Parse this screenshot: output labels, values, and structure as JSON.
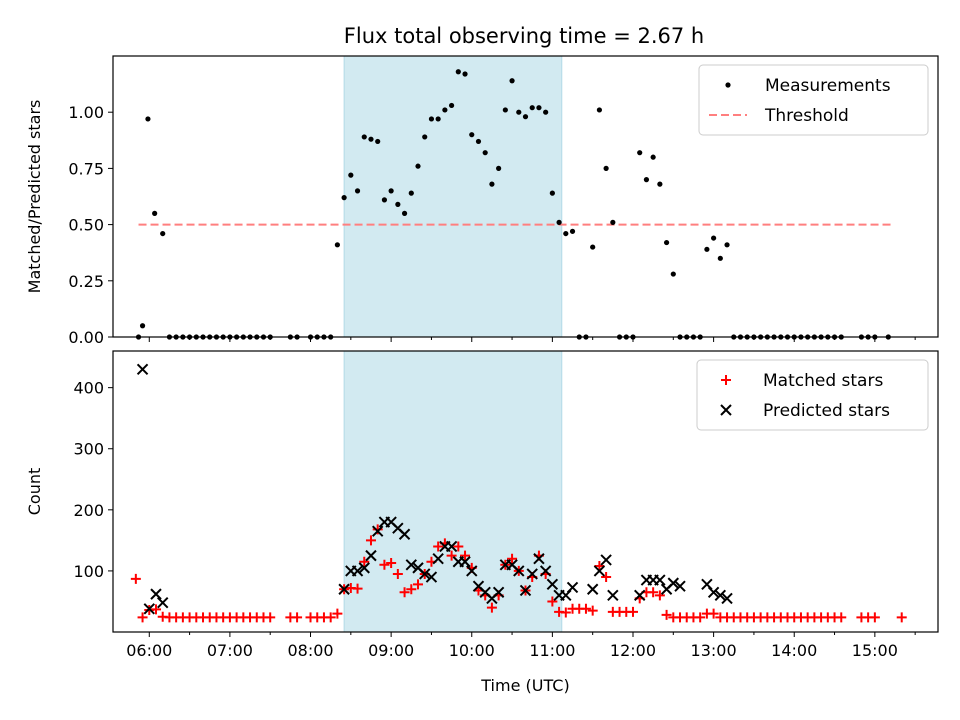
{
  "title": "Flux total observing time = 2.67 h",
  "colors": {
    "measurement": "#000000",
    "threshold": "#ff7f7f",
    "matched": "#ff0000",
    "predicted": "#000000",
    "span": "#add8e6"
  },
  "chart_data": [
    {
      "type": "scatter",
      "panel": "top",
      "ylabel": "Matched/Predicted stars",
      "xlim": [
        "05:33",
        "15:47"
      ],
      "ylim": [
        0,
        1.25
      ],
      "yticks": [
        "0.00",
        "0.25",
        "0.50",
        "0.75",
        "1.00"
      ],
      "legend_position": "upper right",
      "highlight_span": [
        "08:25",
        "11:07"
      ],
      "threshold": {
        "name": "Threshold",
        "value": 0.5,
        "x_range": [
          "05:52",
          "15:12"
        ],
        "style": "dashed"
      },
      "series": [
        {
          "name": "Measurements",
          "marker": "dot",
          "x": [
            "05:52",
            "05:55",
            "05:59",
            "06:04",
            "06:10",
            "06:15",
            "06:20",
            "06:25",
            "06:30",
            "06:35",
            "06:40",
            "06:45",
            "06:50",
            "06:55",
            "07:00",
            "07:05",
            "07:10",
            "07:15",
            "07:20",
            "07:25",
            "07:30",
            "07:45",
            "07:50",
            "08:00",
            "08:05",
            "08:10",
            "08:15",
            "08:20",
            "08:25",
            "08:30",
            "08:35",
            "08:40",
            "08:45",
            "08:50",
            "08:55",
            "09:00",
            "09:05",
            "09:10",
            "09:15",
            "09:20",
            "09:25",
            "09:30",
            "09:35",
            "09:40",
            "09:45",
            "09:50",
            "09:55",
            "10:00",
            "10:05",
            "10:10",
            "10:15",
            "10:20",
            "10:25",
            "10:30",
            "10:35",
            "10:40",
            "10:45",
            "10:50",
            "10:55",
            "11:00",
            "11:05",
            "11:10",
            "11:15",
            "11:20",
            "11:25",
            "11:30",
            "11:35",
            "11:40",
            "11:45",
            "11:50",
            "11:55",
            "12:00",
            "12:05",
            "12:10",
            "12:15",
            "12:20",
            "12:25",
            "12:30",
            "12:35",
            "12:40",
            "12:45",
            "12:50",
            "12:55",
            "13:00",
            "13:05",
            "13:10",
            "13:15",
            "13:20",
            "13:25",
            "13:30",
            "13:35",
            "13:40",
            "13:45",
            "13:50",
            "13:55",
            "14:00",
            "14:05",
            "14:10",
            "14:15",
            "14:20",
            "14:25",
            "14:30",
            "14:35",
            "14:50",
            "14:55",
            "15:00",
            "15:10"
          ],
          "y": [
            0,
            0.05,
            0.97,
            0.55,
            0.46,
            0,
            0,
            0,
            0,
            0,
            0,
            0,
            0,
            0,
            0,
            0,
            0,
            0,
            0,
            0,
            0,
            0,
            0,
            0,
            0,
            0,
            0,
            0.41,
            0.62,
            0.72,
            0.65,
            0.89,
            0.88,
            0.87,
            0.61,
            0.65,
            0.59,
            0.55,
            0.64,
            0.76,
            0.89,
            0.97,
            0.97,
            1.01,
            1.03,
            1.18,
            1.17,
            0.9,
            0.87,
            0.82,
            0.68,
            0.75,
            1.01,
            1.14,
            1.0,
            0.98,
            1.02,
            1.02,
            1.0,
            0.64,
            0.51,
            0.46,
            0.47,
            0,
            0,
            0.4,
            1.01,
            0.75,
            0.51,
            0,
            0,
            0,
            0.82,
            0.7,
            0.8,
            0.68,
            0.42,
            0.28,
            0,
            0,
            0,
            0,
            0.39,
            0.44,
            0.35,
            0.41,
            0,
            0,
            0,
            0,
            0,
            0,
            0,
            0,
            0,
            0,
            0,
            0,
            0,
            0,
            0,
            0,
            0,
            0,
            0,
            0,
            0
          ]
        }
      ]
    },
    {
      "type": "scatter",
      "panel": "bottom",
      "xlabel": "Time (UTC)",
      "ylabel": "Count",
      "xlim": [
        "05:33",
        "15:47"
      ],
      "ylim": [
        0,
        460
      ],
      "yticks": [
        "100",
        "200",
        "300",
        "400"
      ],
      "xticks": [
        "06:00",
        "07:00",
        "08:00",
        "09:00",
        "10:00",
        "11:00",
        "12:00",
        "13:00",
        "14:00",
        "15:00"
      ],
      "legend_position": "upper right",
      "highlight_span": [
        "08:25",
        "11:07"
      ],
      "series": [
        {
          "name": "Matched stars",
          "marker": "plus",
          "x": [
            "05:50",
            "05:55",
            "06:00",
            "06:05",
            "06:10",
            "06:15",
            "06:20",
            "06:25",
            "06:30",
            "06:35",
            "06:40",
            "06:45",
            "06:50",
            "06:55",
            "07:00",
            "07:05",
            "07:10",
            "07:15",
            "07:20",
            "07:25",
            "07:30",
            "07:45",
            "07:50",
            "08:00",
            "08:05",
            "08:10",
            "08:15",
            "08:20",
            "08:25",
            "08:30",
            "08:35",
            "08:40",
            "08:45",
            "08:50",
            "08:55",
            "09:00",
            "09:05",
            "09:10",
            "09:15",
            "09:20",
            "09:25",
            "09:30",
            "09:35",
            "09:40",
            "09:45",
            "09:50",
            "09:55",
            "10:00",
            "10:05",
            "10:10",
            "10:15",
            "10:20",
            "10:25",
            "10:30",
            "10:35",
            "10:40",
            "10:45",
            "10:50",
            "10:55",
            "11:00",
            "11:05",
            "11:10",
            "11:15",
            "11:20",
            "11:25",
            "11:30",
            "11:35",
            "11:40",
            "11:45",
            "11:50",
            "11:55",
            "12:00",
            "12:05",
            "12:10",
            "12:15",
            "12:20",
            "12:25",
            "12:30",
            "12:35",
            "12:40",
            "12:45",
            "12:50",
            "12:55",
            "13:00",
            "13:05",
            "13:10",
            "13:15",
            "13:20",
            "13:25",
            "13:30",
            "13:35",
            "13:40",
            "13:45",
            "13:50",
            "13:55",
            "14:00",
            "14:05",
            "14:10",
            "14:15",
            "14:20",
            "14:25",
            "14:30",
            "14:35",
            "14:50",
            "14:55",
            "15:00",
            "15:20"
          ],
          "y": [
            87,
            24,
            36,
            37,
            25,
            24,
            24,
            24,
            24,
            24,
            24,
            24,
            24,
            24,
            24,
            24,
            24,
            24,
            24,
            24,
            24,
            24,
            24,
            24,
            24,
            24,
            24,
            30,
            70,
            72,
            71,
            115,
            150,
            168,
            110,
            113,
            95,
            65,
            70,
            78,
            95,
            115,
            140,
            145,
            125,
            140,
            125,
            105,
            68,
            60,
            40,
            60,
            110,
            120,
            100,
            68,
            90,
            125,
            95,
            50,
            33,
            32,
            38,
            38,
            38,
            35,
            108,
            90,
            33,
            33,
            33,
            33,
            55,
            65,
            65,
            60,
            28,
            24,
            24,
            24,
            24,
            24,
            30,
            30,
            24,
            24,
            24,
            24,
            24,
            24,
            24,
            24,
            24,
            24,
            24,
            24,
            24,
            24,
            24,
            24,
            24,
            24,
            24,
            24,
            24,
            24,
            24
          ]
        },
        {
          "name": "Predicted stars",
          "marker": "x",
          "x": [
            "05:55",
            "06:00",
            "06:05",
            "06:10",
            "08:25",
            "08:30",
            "08:35",
            "08:40",
            "08:45",
            "08:50",
            "08:55",
            "09:00",
            "09:05",
            "09:10",
            "09:15",
            "09:20",
            "09:25",
            "09:30",
            "09:35",
            "09:40",
            "09:45",
            "09:50",
            "09:55",
            "10:00",
            "10:05",
            "10:10",
            "10:15",
            "10:20",
            "10:25",
            "10:30",
            "10:35",
            "10:40",
            "10:45",
            "10:50",
            "10:55",
            "11:00",
            "11:05",
            "11:10",
            "11:15",
            "11:30",
            "11:35",
            "11:40",
            "11:45",
            "12:05",
            "12:10",
            "12:15",
            "12:20",
            "12:25",
            "12:30",
            "12:35",
            "12:55",
            "13:00",
            "13:05",
            "13:10"
          ],
          "y": [
            430,
            38,
            62,
            48,
            70,
            100,
            100,
            105,
            125,
            165,
            180,
            180,
            170,
            160,
            110,
            105,
            95,
            90,
            120,
            140,
            140,
            115,
            115,
            100,
            75,
            65,
            55,
            65,
            110,
            110,
            100,
            68,
            95,
            120,
            100,
            78,
            60,
            60,
            73,
            70,
            100,
            118,
            60,
            60,
            85,
            85,
            85,
            70,
            80,
            75,
            78,
            65,
            60,
            55
          ]
        }
      ]
    }
  ]
}
